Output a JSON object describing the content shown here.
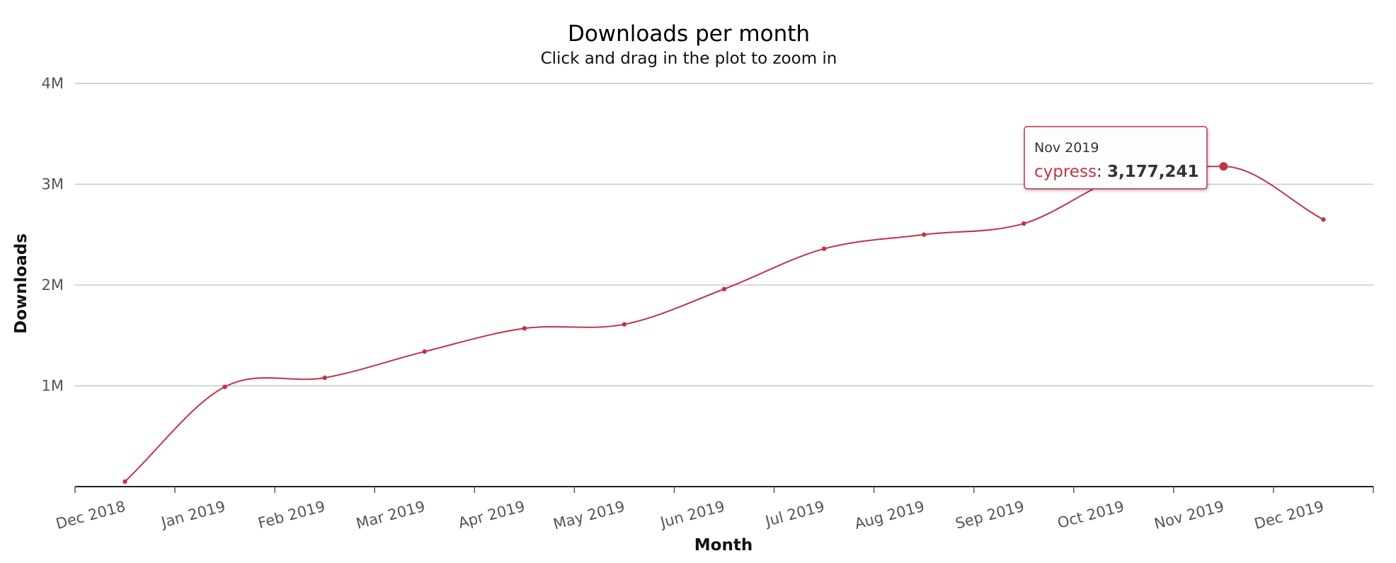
{
  "chart_data": {
    "type": "line",
    "title": "Downloads per month",
    "subtitle": "Click and drag in the plot to zoom in",
    "xlabel": "Month",
    "ylabel": "Downloads",
    "categories": [
      "Dec 2018",
      "Jan 2019",
      "Feb 2019",
      "Mar 2019",
      "Apr 2019",
      "May 2019",
      "Jun 2019",
      "Jul 2019",
      "Aug 2019",
      "Sep 2019",
      "Oct 2019",
      "Nov 2019",
      "Dec 2019"
    ],
    "y_ticks": [
      "1M",
      "2M",
      "3M",
      "4M"
    ],
    "y_tick_values": [
      1000000,
      2000000,
      3000000,
      4000000
    ],
    "ylim": [
      0,
      4000000
    ],
    "grid": true,
    "legend": "none",
    "series": [
      {
        "name": "cypress",
        "color": "#c23347",
        "values": [
          50000,
          990000,
          1080000,
          1340000,
          1570000,
          1610000,
          1960000,
          2360000,
          2500000,
          2610000,
          3080000,
          3177241,
          2650000
        ]
      }
    ],
    "tooltip": {
      "date": "Nov 2019",
      "series": "cypress",
      "separator": ": ",
      "value": "3,177,241",
      "index": 11
    }
  }
}
